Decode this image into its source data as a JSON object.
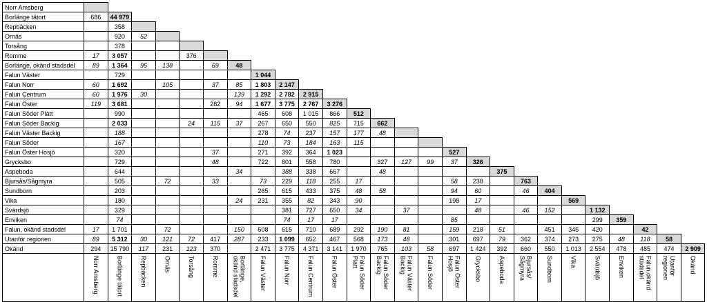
{
  "rows": [
    {
      "label": "Norr Amsberg",
      "cells": []
    },
    {
      "label": "Borlänge tätort",
      "cells": [
        {
          "v": "686"
        }
      ]
    },
    {
      "label": "Repbäcken",
      "cells": [
        {
          "v": ""
        },
        {
          "v": "358"
        }
      ]
    },
    {
      "label": "Ornäs",
      "cells": [
        {
          "v": ""
        },
        {
          "v": "920"
        },
        {
          "v": "52",
          "s": "i"
        }
      ]
    },
    {
      "label": "Torsång",
      "cells": [
        {
          "v": ""
        },
        {
          "v": "378"
        },
        {
          "v": ""
        },
        {
          "v": ""
        }
      ]
    },
    {
      "label": "Romme",
      "cells": [
        {
          "v": "17",
          "s": "i"
        },
        {
          "v": "3 057",
          "s": "b"
        },
        {
          "v": ""
        },
        {
          "v": ""
        },
        {
          "v": "376"
        }
      ]
    },
    {
      "label": "Borlänge, okänd stadsdel",
      "cells": [
        {
          "v": "89",
          "s": "i"
        },
        {
          "v": "1 364",
          "s": "b"
        },
        {
          "v": "95",
          "s": "i"
        },
        {
          "v": "138",
          "s": "i"
        },
        {
          "v": ""
        },
        {
          "v": "69",
          "s": "i"
        }
      ]
    },
    {
      "label": "Falun Väster",
      "cells": [
        {
          "v": ""
        },
        {
          "v": "729"
        },
        {
          "v": ""
        },
        {
          "v": ""
        },
        {
          "v": ""
        },
        {
          "v": ""
        },
        {
          "v": ""
        }
      ]
    },
    {
      "label": "Falun Norr",
      "cells": [
        {
          "v": "60",
          "s": "i"
        },
        {
          "v": "1 692",
          "s": "b"
        },
        {
          "v": ""
        },
        {
          "v": "105",
          "s": "i"
        },
        {
          "v": ""
        },
        {
          "v": "37",
          "s": "i"
        },
        {
          "v": "85",
          "s": "i"
        },
        {
          "v": "1 803",
          "s": "b"
        }
      ]
    },
    {
      "label": "Falun Centrum",
      "cells": [
        {
          "v": "60",
          "s": "i"
        },
        {
          "v": "1 976",
          "s": "b"
        },
        {
          "v": "30",
          "s": "i"
        },
        {
          "v": ""
        },
        {
          "v": ""
        },
        {
          "v": ""
        },
        {
          "v": "139",
          "s": "i"
        },
        {
          "v": "1 292",
          "s": "b"
        },
        {
          "v": "2 782",
          "s": "b"
        }
      ]
    },
    {
      "label": "Falun Öster",
      "cells": [
        {
          "v": "119",
          "s": "i"
        },
        {
          "v": "3 681",
          "s": "b"
        },
        {
          "v": ""
        },
        {
          "v": ""
        },
        {
          "v": ""
        },
        {
          "v": "282"
        },
        {
          "v": "94",
          "s": "i"
        },
        {
          "v": "1 677",
          "s": "b"
        },
        {
          "v": "3 775",
          "s": "b"
        },
        {
          "v": "2 767",
          "s": "b"
        }
      ]
    },
    {
      "label": "Falun Söder Platt",
      "cells": [
        {
          "v": ""
        },
        {
          "v": "990"
        },
        {
          "v": ""
        },
        {
          "v": ""
        },
        {
          "v": ""
        },
        {
          "v": ""
        },
        {
          "v": ""
        },
        {
          "v": "465"
        },
        {
          "v": "608"
        },
        {
          "v": "1 015"
        },
        {
          "v": "866"
        }
      ]
    },
    {
      "label": "Falun Söder Backig",
      "cells": [
        {
          "v": ""
        },
        {
          "v": "2 033",
          "s": "b"
        },
        {
          "v": ""
        },
        {
          "v": ""
        },
        {
          "v": "24",
          "s": "i"
        },
        {
          "v": "115",
          "s": "i"
        },
        {
          "v": "37",
          "s": "i"
        },
        {
          "v": "267"
        },
        {
          "v": "650"
        },
        {
          "v": "550"
        },
        {
          "v": "825",
          "s": "i"
        },
        {
          "v": "715"
        }
      ]
    },
    {
      "label": "Falun Väster Backig",
      "cells": [
        {
          "v": ""
        },
        {
          "v": "188",
          "s": "i"
        },
        {
          "v": ""
        },
        {
          "v": ""
        },
        {
          "v": ""
        },
        {
          "v": ""
        },
        {
          "v": ""
        },
        {
          "v": "278"
        },
        {
          "v": "74",
          "s": "i"
        },
        {
          "v": "237"
        },
        {
          "v": "157",
          "s": "i"
        },
        {
          "v": "177",
          "s": "i"
        },
        {
          "v": "48",
          "s": "i"
        }
      ]
    },
    {
      "label": "Falun Söder",
      "cells": [
        {
          "v": ""
        },
        {
          "v": "167",
          "s": "i"
        },
        {
          "v": ""
        },
        {
          "v": ""
        },
        {
          "v": ""
        },
        {
          "v": ""
        },
        {
          "v": ""
        },
        {
          "v": "110",
          "s": "i"
        },
        {
          "v": "73",
          "s": "i"
        },
        {
          "v": "184",
          "s": "i"
        },
        {
          "v": "163",
          "s": "i"
        },
        {
          "v": "115",
          "s": "i"
        },
        {
          "v": ""
        },
        {
          "v": ""
        }
      ]
    },
    {
      "label": "Falun Öster Hosjö",
      "cells": [
        {
          "v": ""
        },
        {
          "v": "320"
        },
        {
          "v": ""
        },
        {
          "v": ""
        },
        {
          "v": ""
        },
        {
          "v": "37",
          "s": "i"
        },
        {
          "v": ""
        },
        {
          "v": "271"
        },
        {
          "v": "392"
        },
        {
          "v": "364"
        },
        {
          "v": "1 023",
          "s": "b"
        },
        {
          "v": ""
        },
        {
          "v": ""
        },
        {
          "v": ""
        },
        {
          "v": ""
        }
      ]
    },
    {
      "label": "Grycksbo",
      "cells": [
        {
          "v": ""
        },
        {
          "v": "729"
        },
        {
          "v": ""
        },
        {
          "v": ""
        },
        {
          "v": ""
        },
        {
          "v": "48",
          "s": "i"
        },
        {
          "v": ""
        },
        {
          "v": "722"
        },
        {
          "v": "801"
        },
        {
          "v": "558"
        },
        {
          "v": "780"
        },
        {
          "v": ""
        },
        {
          "v": "327"
        },
        {
          "v": "127",
          "s": "i"
        },
        {
          "v": "99",
          "s": "i"
        },
        {
          "v": "37",
          "s": "i"
        }
      ]
    },
    {
      "label": "Aspeboda",
      "cells": [
        {
          "v": ""
        },
        {
          "v": "644"
        },
        {
          "v": ""
        },
        {
          "v": ""
        },
        {
          "v": ""
        },
        {
          "v": ""
        },
        {
          "v": "34",
          "s": "i"
        },
        {
          "v": ""
        },
        {
          "v": "388",
          "s": "i"
        },
        {
          "v": "338"
        },
        {
          "v": "667"
        },
        {
          "v": ""
        },
        {
          "v": "48",
          "s": "i"
        },
        {
          "v": ""
        },
        {
          "v": ""
        },
        {
          "v": ""
        },
        {
          "v": ""
        }
      ]
    },
    {
      "label": "Bjursås/Sågmyra",
      "cells": [
        {
          "v": ""
        },
        {
          "v": "505"
        },
        {
          "v": ""
        },
        {
          "v": "72",
          "s": "i"
        },
        {
          "v": ""
        },
        {
          "v": "33",
          "s": "i"
        },
        {
          "v": ""
        },
        {
          "v": "73",
          "s": "i"
        },
        {
          "v": "229"
        },
        {
          "v": "118",
          "s": "i"
        },
        {
          "v": "255"
        },
        {
          "v": "17",
          "s": "i"
        },
        {
          "v": ""
        },
        {
          "v": ""
        },
        {
          "v": ""
        },
        {
          "v": "58",
          "s": "i"
        },
        {
          "v": "238"
        },
        {
          "v": ""
        }
      ]
    },
    {
      "label": "Sundborn",
      "cells": [
        {
          "v": ""
        },
        {
          "v": "203"
        },
        {
          "v": ""
        },
        {
          "v": ""
        },
        {
          "v": ""
        },
        {
          "v": ""
        },
        {
          "v": ""
        },
        {
          "v": "265"
        },
        {
          "v": "615"
        },
        {
          "v": "433"
        },
        {
          "v": "375"
        },
        {
          "v": "48",
          "s": "i"
        },
        {
          "v": "58",
          "s": "i"
        },
        {
          "v": ""
        },
        {
          "v": ""
        },
        {
          "v": "94",
          "s": "i"
        },
        {
          "v": "60",
          "s": "i"
        },
        {
          "v": ""
        },
        {
          "v": "46",
          "s": "i"
        }
      ]
    },
    {
      "label": "Vika",
      "cells": [
        {
          "v": ""
        },
        {
          "v": "180"
        },
        {
          "v": ""
        },
        {
          "v": ""
        },
        {
          "v": ""
        },
        {
          "v": ""
        },
        {
          "v": "24",
          "s": "i"
        },
        {
          "v": "231"
        },
        {
          "v": "355"
        },
        {
          "v": "82",
          "s": "i"
        },
        {
          "v": "343"
        },
        {
          "v": "90",
          "s": "i"
        },
        {
          "v": ""
        },
        {
          "v": ""
        },
        {
          "v": ""
        },
        {
          "v": "198"
        },
        {
          "v": "17",
          "s": "i"
        },
        {
          "v": ""
        },
        {
          "v": ""
        },
        {
          "v": ""
        }
      ]
    },
    {
      "label": "Svärdsjö",
      "cells": [
        {
          "v": ""
        },
        {
          "v": "329"
        },
        {
          "v": ""
        },
        {
          "v": ""
        },
        {
          "v": ""
        },
        {
          "v": ""
        },
        {
          "v": ""
        },
        {
          "v": ""
        },
        {
          "v": "381"
        },
        {
          "v": "727"
        },
        {
          "v": "650"
        },
        {
          "v": "34",
          "s": "i"
        },
        {
          "v": ""
        },
        {
          "v": "37",
          "s": "i"
        },
        {
          "v": ""
        },
        {
          "v": ""
        },
        {
          "v": "48",
          "s": "i"
        },
        {
          "v": ""
        },
        {
          "v": "46",
          "s": "i"
        },
        {
          "v": "152",
          "s": "i"
        },
        {
          "v": ""
        }
      ]
    },
    {
      "label": "Enviken",
      "cells": [
        {
          "v": ""
        },
        {
          "v": "74",
          "s": "i"
        },
        {
          "v": ""
        },
        {
          "v": ""
        },
        {
          "v": ""
        },
        {
          "v": ""
        },
        {
          "v": ""
        },
        {
          "v": ""
        },
        {
          "v": "74",
          "s": "i"
        },
        {
          "v": "17",
          "s": "i"
        },
        {
          "v": "17",
          "s": "i"
        },
        {
          "v": ""
        },
        {
          "v": ""
        },
        {
          "v": ""
        },
        {
          "v": ""
        },
        {
          "v": "85",
          "s": "i"
        },
        {
          "v": ""
        },
        {
          "v": ""
        },
        {
          "v": ""
        },
        {
          "v": ""
        },
        {
          "v": ""
        },
        {
          "v": "299"
        }
      ]
    },
    {
      "label": "Falun, okänd stadsdel",
      "cells": [
        {
          "v": "17",
          "s": "i"
        },
        {
          "v": "1 701"
        },
        {
          "v": ""
        },
        {
          "v": "72",
          "s": "i"
        },
        {
          "v": ""
        },
        {
          "v": ""
        },
        {
          "v": "150",
          "s": "i"
        },
        {
          "v": "508"
        },
        {
          "v": "615"
        },
        {
          "v": "710"
        },
        {
          "v": "689"
        },
        {
          "v": "292"
        },
        {
          "v": "190",
          "s": "i"
        },
        {
          "v": "81",
          "s": "i"
        },
        {
          "v": ""
        },
        {
          "v": "159",
          "s": "i"
        },
        {
          "v": "218"
        },
        {
          "v": "51",
          "s": "i"
        },
        {
          "v": ""
        },
        {
          "v": "451"
        },
        {
          "v": "345"
        },
        {
          "v": "420"
        },
        {
          "v": ""
        }
      ]
    },
    {
      "label": "Utanför regionen",
      "cells": [
        {
          "v": "89",
          "s": "i"
        },
        {
          "v": "5 312",
          "s": "b"
        },
        {
          "v": "30",
          "s": "i"
        },
        {
          "v": "121",
          "s": "i"
        },
        {
          "v": "72",
          "s": "i"
        },
        {
          "v": "417"
        },
        {
          "v": "287",
          "s": "i"
        },
        {
          "v": "233"
        },
        {
          "v": "1 099",
          "s": "b"
        },
        {
          "v": "652"
        },
        {
          "v": "467"
        },
        {
          "v": "568"
        },
        {
          "v": "173",
          "s": "i"
        },
        {
          "v": "48",
          "s": "i"
        },
        {
          "v": ""
        },
        {
          "v": "301"
        },
        {
          "v": "697"
        },
        {
          "v": "79",
          "s": "i"
        },
        {
          "v": "362"
        },
        {
          "v": "374"
        },
        {
          "v": "273"
        },
        {
          "v": "275"
        },
        {
          "v": "48",
          "s": "i"
        },
        {
          "v": "118",
          "s": "i"
        }
      ]
    },
    {
      "label": "Okänd",
      "cells": [
        {
          "v": "294"
        },
        {
          "v": "15 790"
        },
        {
          "v": "117",
          "s": "i"
        },
        {
          "v": "231"
        },
        {
          "v": "123",
          "s": "i"
        },
        {
          "v": "370"
        },
        {
          "v": ""
        },
        {
          "v": "2 471"
        },
        {
          "v": "3 775"
        },
        {
          "v": "4 371"
        },
        {
          "v": "3 141"
        },
        {
          "v": "1 970"
        },
        {
          "v": "765"
        },
        {
          "v": "103",
          "s": "i"
        },
        {
          "v": "58",
          "s": "i"
        },
        {
          "v": "697"
        },
        {
          "v": "1 424"
        },
        {
          "v": "392"
        },
        {
          "v": "660"
        },
        {
          "v": "550"
        },
        {
          "v": "1 013"
        },
        {
          "v": "2 554"
        },
        {
          "v": "478"
        },
        {
          "v": "485"
        },
        {
          "v": "474"
        }
      ]
    }
  ],
  "diag_values": [
    "",
    "44 979",
    "",
    "",
    "",
    "",
    "48",
    "1 044",
    "2 147",
    "2 915",
    "3 276",
    "512",
    "662",
    "",
    "",
    "527",
    "326",
    "375",
    "763",
    "404",
    "569",
    "1 132",
    "359",
    "42",
    "58",
    "2 909"
  ],
  "col_labels": [
    "Norr Amsberg",
    "Borlänge tätort",
    "Repbäcken",
    "Ornäs",
    "Torsång",
    "Romme",
    "Borlänge,\nokänd stadsdel",
    "Falun Väster",
    "Falun Norr",
    "Falun Centrum",
    "Falun Öster",
    "Falun Söder\nPlatt",
    "Falun Söder\nBackig",
    "Falun Väster\nBackig",
    "Falun Söder",
    "Falun Öster\nHosjö",
    "Grycksbo",
    "Aspeboda",
    "Bjursås/\nSågmyra",
    "Sundborn",
    "Vika",
    "Svärdsjö",
    "Enviken",
    "Falun,okänd\nstadsdel",
    "Utanför\nregionen",
    "Okänd"
  ]
}
